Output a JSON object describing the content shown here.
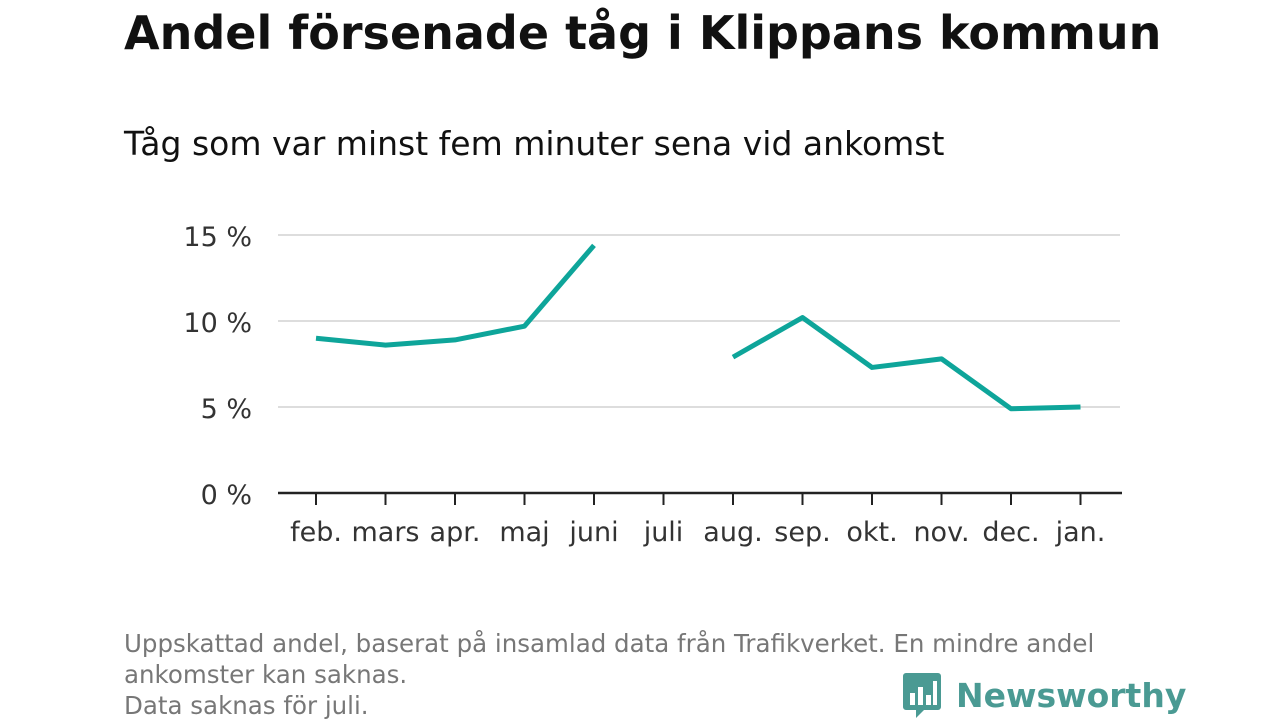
{
  "header": {
    "title": "Andel försenade tåg i Klippans kommun",
    "subtitle": "Tåg som var minst fem minuter sena vid ankomst"
  },
  "footer": {
    "note_line1": "Uppskattad andel, baserat på insamlad data från Trafikverket. En mindre andel",
    "note_line2": "ankomster kan saknas.",
    "note_line3": "Data saknas för juli.",
    "brand": "Newsworthy",
    "brand_icon": "bar-chart-bubble-icon"
  },
  "colors": {
    "line": "#0ea59a",
    "grid": "#dddddd",
    "axis": "#222222",
    "brand": "#4a9a93"
  },
  "chart_data": {
    "type": "line",
    "title": "Andel försenade tåg i Klippans kommun",
    "subtitle": "Tåg som var minst fem minuter sena vid ankomst",
    "categories": [
      "feb.",
      "mars",
      "apr.",
      "maj",
      "juni",
      "juli",
      "aug.",
      "sep.",
      "okt.",
      "nov.",
      "dec.",
      "jan."
    ],
    "series": [
      {
        "values": [
          9.0,
          8.6,
          8.9,
          9.7,
          14.4,
          null,
          7.9,
          10.2,
          7.3,
          7.8,
          4.9,
          5.0
        ]
      }
    ],
    "y_ticks": [
      0,
      5,
      10,
      15
    ],
    "y_tick_labels": [
      "0 %",
      "5 %",
      "10 %",
      "15 %"
    ],
    "ylim": [
      0,
      15
    ],
    "grid": true,
    "xlabel": "",
    "ylabel": ""
  }
}
